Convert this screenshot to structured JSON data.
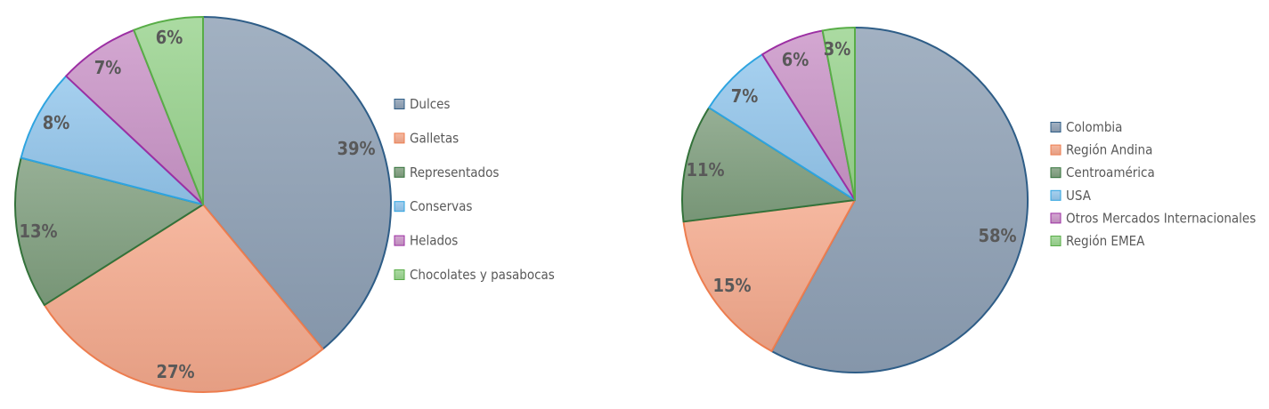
{
  "chart_data": [
    {
      "type": "pie",
      "categories": [
        "Dulces",
        "Galletas",
        "Representados",
        "Conservas",
        "Helados",
        "Chocolates y pasabocas"
      ],
      "values": [
        39,
        27,
        13,
        8,
        7,
        6
      ],
      "data_labels": [
        "39%",
        "27%",
        "13%",
        "8%",
        "7%",
        "6%"
      ],
      "title": "",
      "legend_position": "right",
      "start_angle": "top, clockwise",
      "colors": {
        "fill": [
          "#8ea0b5",
          "#f4a88b",
          "#7f9e7e",
          "#93c6ec",
          "#c994c7",
          "#98d38d"
        ],
        "stroke": [
          "#2e5d87",
          "#ed7d4f",
          "#33723a",
          "#2ea4e0",
          "#9c2fa3",
          "#58ad47"
        ]
      }
    },
    {
      "type": "pie",
      "categories": [
        "Colombia",
        "Región Andina",
        "Centroamérica",
        "USA",
        "Otros Mercados Internacionales",
        "Región EMEA"
      ],
      "values": [
        58,
        15,
        11,
        7,
        6,
        3
      ],
      "data_labels": [
        "58%",
        "15%",
        "11%",
        "7%",
        "6%",
        "3%"
      ],
      "title": "",
      "legend_position": "right",
      "start_angle": "top, clockwise",
      "colors": {
        "fill": [
          "#8ea0b5",
          "#f4a88b",
          "#7f9e7e",
          "#93c6ec",
          "#c994c7",
          "#98d38d"
        ],
        "stroke": [
          "#2e5d87",
          "#ed7d4f",
          "#33723a",
          "#2ea4e0",
          "#9c2fa3",
          "#58ad47"
        ]
      }
    }
  ]
}
